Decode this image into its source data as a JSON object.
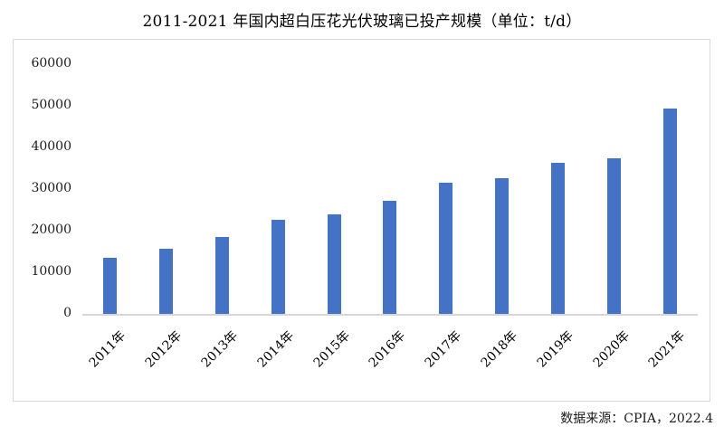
{
  "source_note": "数据来源：CPIA，2022.4",
  "colors": {
    "bar": "#4472C4",
    "axis_line": "#d6d6d6",
    "frame_border": "#d9d9d9",
    "text": "#1a1a1a"
  },
  "chart_data": {
    "type": "bar",
    "title": "2011-2021 年国内超白压花光伏玻璃已投产规模（单位：t/d）",
    "categories": [
      "2011年",
      "2012年",
      "2013年",
      "2014年",
      "2015年",
      "2016年",
      "2017年",
      "2018年",
      "2019年",
      "2020年",
      "2021年"
    ],
    "values": [
      13400,
      15600,
      18500,
      22600,
      23900,
      27200,
      31500,
      32700,
      36200,
      37400,
      49400
    ],
    "unit": "t/d",
    "xlabel": "",
    "ylabel": "",
    "ylim": [
      0,
      60000
    ],
    "yticks": [
      0,
      10000,
      20000,
      30000,
      40000,
      50000,
      60000
    ],
    "bar_color": "#4472C4",
    "grid": false,
    "legend": false,
    "source": "数据来源：CPIA，2022.4"
  }
}
